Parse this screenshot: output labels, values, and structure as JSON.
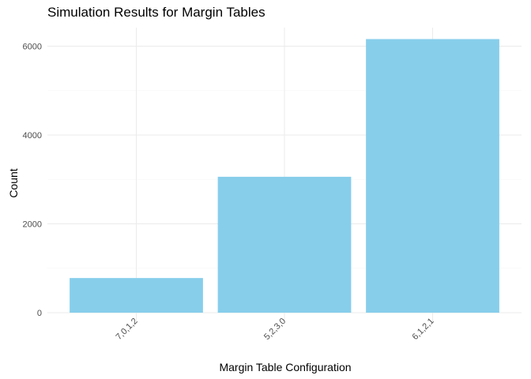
{
  "chart_data": {
    "type": "bar",
    "title": "Simulation Results for Margin Tables",
    "xlabel": "Margin Table Configuration",
    "ylabel": "Count",
    "categories": [
      "7,0,1,2",
      "5,2,3,0",
      "6,1,2,1"
    ],
    "values": [
      780,
      3060,
      6160
    ],
    "ylim": [
      0,
      6400
    ],
    "yticks": [
      0,
      2000,
      4000,
      6000
    ],
    "grid": true,
    "legend": "none",
    "bar_color": "#87CEEB"
  }
}
